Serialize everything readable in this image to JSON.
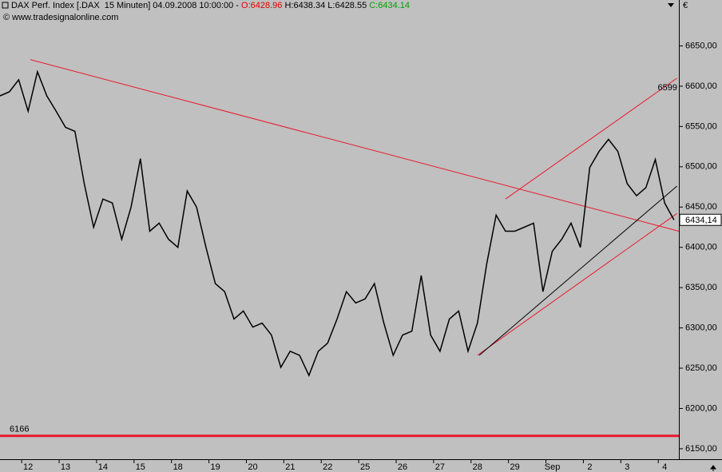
{
  "chart_data": {
    "type": "line",
    "header": {
      "instrument": "DAX Perf. Index [.DAX  15 Minuten] 04.09.2008 10:00:00 - ",
      "open": "O:6428.96",
      "high": "H:6438.34",
      "low": "L:6428.55",
      "close": "C:6434.14"
    },
    "source": "© www.tradesignalonline.com",
    "color": "#000000",
    "x": [
      -0.75,
      -0.5,
      -0.25,
      0,
      0.25,
      0.5,
      0.75,
      1,
      1.25,
      1.5,
      1.75,
      2,
      2.25,
      2.5,
      2.75,
      3,
      3.25,
      3.5,
      3.75,
      4,
      4.25,
      4.5,
      4.75,
      5,
      5.25,
      5.5,
      5.75,
      6,
      6.25,
      6.5,
      6.75,
      7,
      7.25,
      7.5,
      7.75,
      8,
      8.25,
      8.5,
      8.75,
      9,
      9.25,
      9.5,
      9.75,
      10,
      10.25,
      10.5,
      10.75,
      11,
      11.25,
      11.5,
      11.75,
      12,
      12.25,
      12.5,
      12.75,
      13,
      13.25,
      13.5,
      13.75,
      14,
      14.25,
      14.5,
      14.75,
      15,
      15.25,
      15.5,
      15.75,
      16,
      16.25,
      16.5,
      16.75,
      17,
      17.25
    ],
    "values": [
      6588,
      6593,
      6608,
      6569,
      6618,
      6588,
      6569,
      6549,
      6544,
      6479,
      6425,
      6460,
      6455,
      6410,
      6450,
      6510,
      6420,
      6430,
      6410,
      6400,
      6470,
      6450,
      6400,
      6355,
      6345,
      6311,
      6321,
      6301,
      6306,
      6291,
      6251,
      6271,
      6266,
      6241,
      6271,
      6281,
      6311,
      6345,
      6331,
      6336,
      6355,
      6306,
      6266,
      6291,
      6296,
      6365,
      6291,
      6271,
      6311,
      6321,
      6271,
      6306,
      6380,
      6440,
      6420,
      6420,
      6425,
      6430,
      6345,
      6395,
      6410,
      6430,
      6400,
      6499,
      6519,
      6534,
      6519,
      6479,
      6464,
      6474,
      6509,
      6455,
      6434
    ],
    "xlim": [
      -0.75,
      17.38
    ],
    "xticks": [
      {
        "value": 0,
        "label": "12"
      },
      {
        "value": 1,
        "label": "13"
      },
      {
        "value": 2,
        "label": "14"
      },
      {
        "value": 3,
        "label": "15"
      },
      {
        "value": 4,
        "label": "18"
      },
      {
        "value": 5,
        "label": "19"
      },
      {
        "value": 6,
        "label": "20"
      },
      {
        "value": 7,
        "label": "21"
      },
      {
        "value": 8,
        "label": "22"
      },
      {
        "value": 9,
        "label": "25"
      },
      {
        "value": 10,
        "label": "26"
      },
      {
        "value": 11,
        "label": "27"
      },
      {
        "value": 12,
        "label": "28"
      },
      {
        "value": 13,
        "label": "29"
      },
      {
        "value": 14,
        "label": "Sep"
      },
      {
        "value": 15,
        "label": "2"
      },
      {
        "value": 16,
        "label": "3"
      },
      {
        "value": 17,
        "label": "4"
      }
    ],
    "ylim": [
      6137,
      6707
    ],
    "yticks": [
      {
        "value": 6150,
        "label": "6150,00"
      },
      {
        "value": 6200,
        "label": "6200,00"
      },
      {
        "value": 6250,
        "label": "6250,00"
      },
      {
        "value": 6300,
        "label": "6300,00"
      },
      {
        "value": 6350,
        "label": "6350,00"
      },
      {
        "value": 6400,
        "label": "6400,00"
      },
      {
        "value": 6450,
        "label": "6450,00"
      },
      {
        "value": 6500,
        "label": "6500,00"
      },
      {
        "value": 6550,
        "label": "6550,00"
      },
      {
        "value": 6600,
        "label": "6600,00"
      },
      {
        "value": 6650,
        "label": "6650,00"
      }
    ],
    "last_price": {
      "value": 6434.14,
      "label": "6434,14"
    },
    "horizontal_line": {
      "value": 6166,
      "color": "#e8192c"
    },
    "channel_label": 6599,
    "trend_lines": [
      {
        "x": [
          0.06,
          17.38
        ],
        "y": [
          6633,
          6420
        ],
        "color": "#e8192c"
      },
      {
        "x": [
          12.0,
          17.33
        ],
        "y": [
          6266,
          6442
        ],
        "color": "#e8192c"
      },
      {
        "x": [
          12.75,
          17.33
        ],
        "y": [
          6460,
          6610
        ],
        "color": "#e8192c"
      },
      {
        "x": [
          12.05,
          17.33
        ],
        "y": [
          6266,
          6476
        ],
        "color": "#000000"
      }
    ]
  }
}
